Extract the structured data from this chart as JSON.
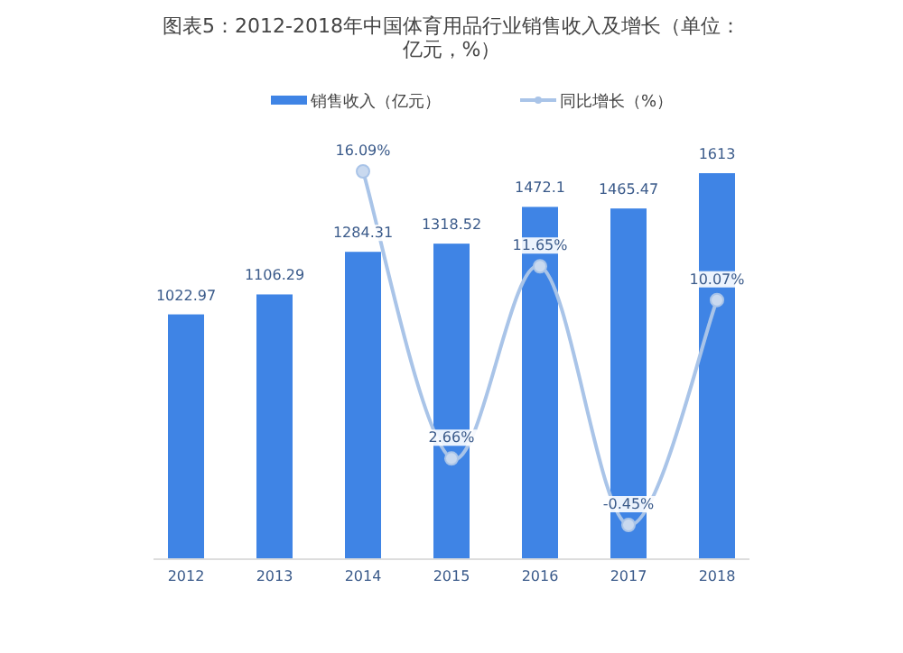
{
  "chart_data": {
    "type": "bar",
    "title": "图表5：2012-2018年中国体育用品行业销售收入及增长（单位：亿元，%）",
    "categories": [
      "2012",
      "2013",
      "2014",
      "2015",
      "2016",
      "2017",
      "2018"
    ],
    "series": [
      {
        "name": "销售收入（亿元）",
        "color": "#3f84e5",
        "values": [
          1022.97,
          1106.29,
          1284.31,
          1318.52,
          1472.1,
          1465.47,
          1613
        ]
      },
      {
        "name": "同比增长（%）",
        "type": "line",
        "axis": "y2",
        "color": "#a9c4e8",
        "marker": "circle",
        "values": [
          null,
          null,
          16.09,
          2.66,
          11.65,
          -0.45,
          10.07
        ],
        "value_labels": [
          null,
          null,
          "16.09%",
          "2.66%",
          "11.65%",
          "-0.45%",
          "10.07%"
        ]
      }
    ],
    "data_labels": true,
    "legend": "top",
    "tick_labels": "x"
  }
}
